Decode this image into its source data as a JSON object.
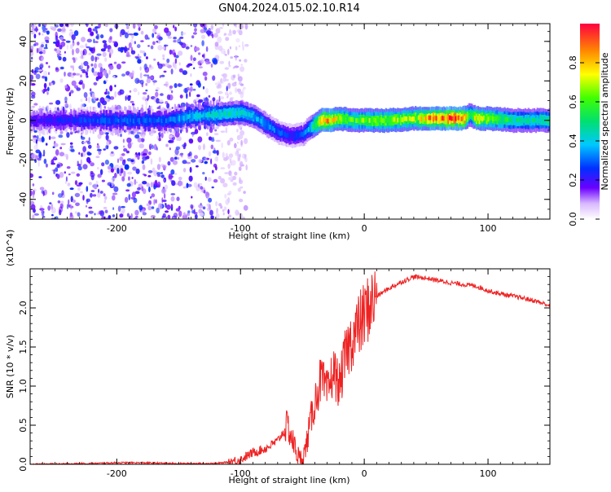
{
  "title": "GN04.2024.015.02.10.R14",
  "chart_data": [
    {
      "type": "heatmap",
      "xlabel": "Height of straight line (km)",
      "ylabel": "Frequency (Hz)",
      "xlim": [
        -270,
        150
      ],
      "ylim": [
        -50,
        49
      ],
      "x_ticks": [
        -200,
        -100,
        0,
        100
      ],
      "y_ticks": [
        -40,
        -20,
        0,
        20,
        40
      ],
      "colorbar": {
        "label": "Normalized spectral amplitude",
        "range": [
          0,
          1
        ],
        "ticks": [
          "0.0",
          "0.2",
          "0.4",
          "0.6",
          "0.8"
        ],
        "colormap": "rainbow"
      },
      "ridge": {
        "x": [
          -270,
          -240,
          -200,
          -160,
          -140,
          -120,
          -100,
          -90,
          -80,
          -70,
          -60,
          -50,
          -45,
          -40,
          -35,
          -30,
          -20,
          -10,
          0,
          20,
          40,
          60,
          80,
          85,
          90,
          100,
          120,
          150
        ],
        "freq": [
          0,
          0,
          0,
          0,
          2,
          3,
          4,
          2,
          -2,
          -6,
          -8,
          -7,
          -4,
          -2,
          0,
          0,
          1,
          0,
          0,
          0,
          1,
          1,
          1,
          3,
          1,
          1,
          0,
          0
        ],
        "amplitude": [
          0.2,
          0.25,
          0.3,
          0.3,
          0.4,
          0.45,
          0.45,
          0.4,
          0.35,
          0.3,
          0.25,
          0.3,
          0.4,
          0.6,
          0.85,
          0.9,
          0.7,
          0.6,
          0.65,
          0.7,
          0.7,
          0.95,
          0.95,
          0.5,
          0.8,
          0.7,
          0.5,
          0.5
        ]
      },
      "noise_region": [
        -270,
        -120
      ]
    },
    {
      "type": "line",
      "xlabel": "Height of straight line (km)",
      "ylabel": "SNR (10 * v/v)",
      "y_multiplier": "(x10^4)",
      "xlim": [
        -270,
        150
      ],
      "ylim": [
        0,
        2.5
      ],
      "x_ticks": [
        -200,
        -100,
        0,
        100
      ],
      "y_ticks": [
        "0.0",
        "0.5",
        "1.0",
        "1.5",
        "2.0"
      ],
      "color": "#ee2222",
      "series": [
        {
          "x": [
            -270,
            -220,
            -200,
            -180,
            -150,
            -120,
            -110,
            -100,
            -90,
            -80,
            -70,
            -62,
            -58,
            -52,
            -48,
            -44,
            -40,
            -35,
            -30,
            -25,
            -20,
            -15,
            -10,
            -5,
            0,
            5,
            10,
            20,
            30,
            40,
            50,
            60,
            70,
            80,
            90,
            100,
            110,
            120,
            130,
            140,
            150
          ],
          "y": [
            0.0,
            0.01,
            0.02,
            0.02,
            0.01,
            0.01,
            0.03,
            0.06,
            0.15,
            0.2,
            0.3,
            0.5,
            0.3,
            0.05,
            0.15,
            0.5,
            0.8,
            1.1,
            0.9,
            1.2,
            1.0,
            1.4,
            1.6,
            1.75,
            1.9,
            2.05,
            2.15,
            2.25,
            2.33,
            2.4,
            2.38,
            2.35,
            2.32,
            2.3,
            2.28,
            2.22,
            2.18,
            2.15,
            2.12,
            2.08,
            2.03
          ]
        }
      ]
    }
  ]
}
